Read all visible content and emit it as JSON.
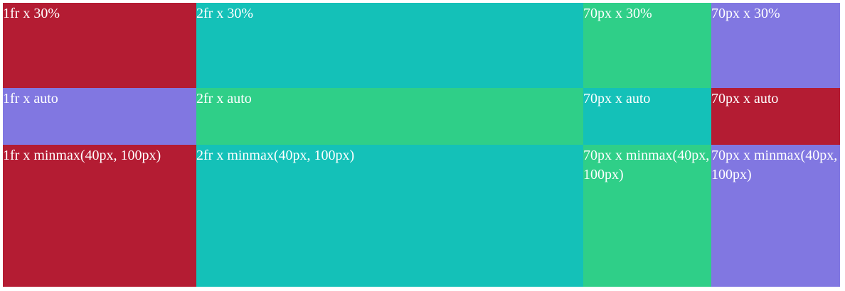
{
  "grid": {
    "rows": [
      {
        "cells": [
          {
            "label": "1fr x 30%",
            "color": "#b41c33"
          },
          {
            "label": "2fr x 30%",
            "color": "#14c1b8"
          },
          {
            "label": "70px x 30%",
            "color": "#2fcf88"
          },
          {
            "label": "70px x 30%",
            "color": "#8177e1"
          }
        ]
      },
      {
        "cells": [
          {
            "label": "1fr x auto",
            "color": "#8177e1"
          },
          {
            "label": "2fr x auto",
            "color": "#2fcf88"
          },
          {
            "label": "70px x auto",
            "color": "#14c1b8"
          },
          {
            "label": "70px x auto",
            "color": "#b41c33"
          }
        ]
      },
      {
        "cells": [
          {
            "label": "1fr x minmax(40px, 100px)",
            "color": "#b41c33"
          },
          {
            "label": "2fr x minmax(40px, 100px)",
            "color": "#14c1b8"
          },
          {
            "label": "70px x minmax(40px, 100px)",
            "color": "#2fcf88"
          },
          {
            "label": "70px x minmax(40px, 100px)",
            "color": "#8177e1"
          }
        ]
      }
    ]
  }
}
